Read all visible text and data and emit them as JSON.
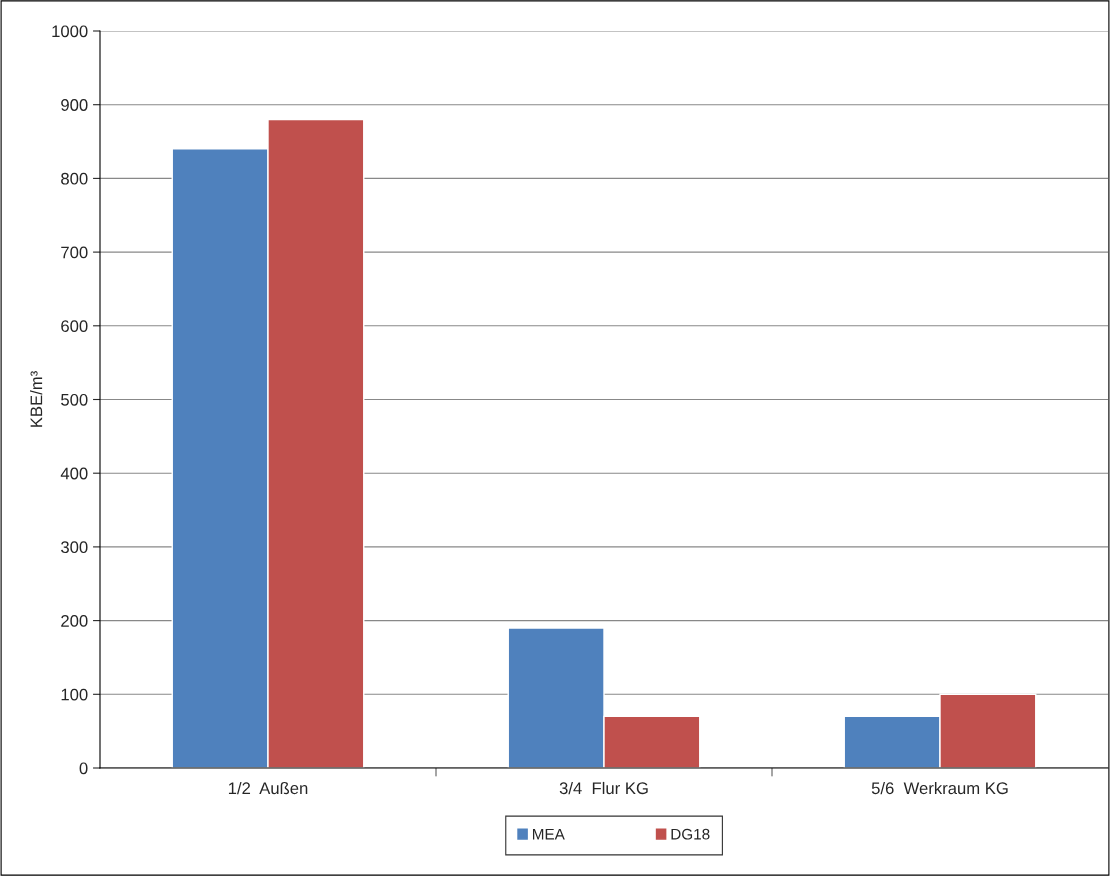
{
  "chart_data": {
    "type": "bar",
    "ylabel": "KBE/m³",
    "categories": [
      "1/2  Außen",
      "3/4  Flur KG",
      "5/6  Werkraum KG"
    ],
    "series": [
      {
        "name": "MEA",
        "color": "#4f81bd",
        "values": [
          840,
          190,
          70
        ]
      },
      {
        "name": "DG18",
        "color": "#c0504d",
        "values": [
          880,
          70,
          100
        ]
      }
    ],
    "ylim": [
      0,
      1000
    ],
    "yticks": [
      0,
      100,
      200,
      300,
      400,
      500,
      600,
      700,
      800,
      900,
      1000
    ],
    "grid": "y",
    "legend": "bottom"
  }
}
